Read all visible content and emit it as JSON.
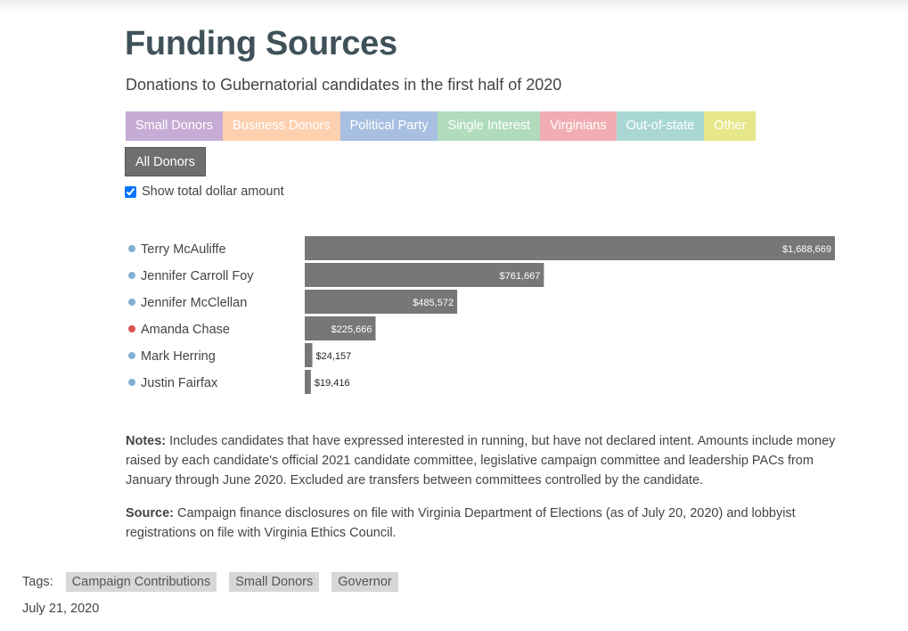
{
  "page": {
    "title": "Funding Sources",
    "subtitle": "Donations to Gubernatorial candidates in the first half of 2020"
  },
  "filters": [
    {
      "label": "Small Donors",
      "color": "#c6acd4"
    },
    {
      "label": "Business Donors",
      "color": "#fdd0b0"
    },
    {
      "label": "Political Party",
      "color": "#a7bfe0"
    },
    {
      "label": "Single Interest",
      "color": "#b0dcbc"
    },
    {
      "label": "Virginians",
      "color": "#f1aeb2"
    },
    {
      "label": "Out-of-state",
      "color": "#a9d8d4"
    },
    {
      "label": "Other",
      "color": "#e6e78a"
    }
  ],
  "all_donors": {
    "label": "All Donors",
    "color": "#6f6f6f"
  },
  "show_total": {
    "label": "Show total dollar amount",
    "checked": true
  },
  "chart_data": {
    "type": "bar",
    "orientation": "horizontal",
    "categories": [
      "Terry McAuliffe",
      "Jennifer Carroll Foy",
      "Jennifer McClellan",
      "Amanda Chase",
      "Mark Herring",
      "Justin Fairfax"
    ],
    "values": [
      1688669,
      761667,
      485572,
      225666,
      24157,
      19416
    ],
    "value_labels": [
      "$1,688,669",
      "$761,667",
      "$485,572",
      "$225,666",
      "$24,157",
      "$19,416"
    ],
    "party_colors": [
      "#82b0d2",
      "#82b0d2",
      "#82b0d2",
      "#d9534f",
      "#82b0d2",
      "#82b0d2"
    ],
    "bar_color": "#777777",
    "xlim": [
      0,
      1688669
    ]
  },
  "notes": {
    "label": "Notes:",
    "text": " Includes candidates that have expressed interested in running, but have not declared intent. Amounts include money raised by each candidate's official 2021 candidate committee, legislative campaign committee and leadership PACs from January through June 2020. Excluded are transfers between committees controlled by the candidate."
  },
  "source": {
    "label": "Source:",
    "text": " Campaign finance disclosures on file with Virginia Department of Elections (as of July 20, 2020) and lobbyist registrations on file with Virginia Ethics Council."
  },
  "tags": {
    "label": "Tags:",
    "items": [
      "Campaign Contributions",
      "Small Donors",
      "Governor"
    ]
  },
  "date": "July 21, 2020"
}
